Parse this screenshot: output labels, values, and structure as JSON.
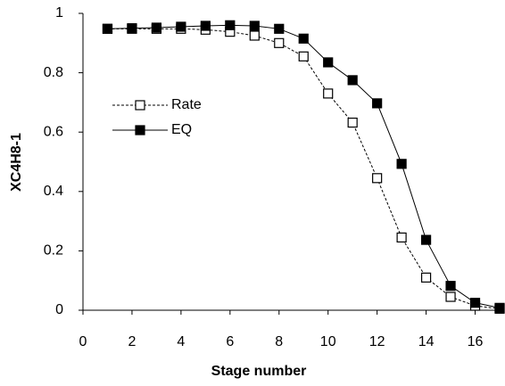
{
  "chart_data": {
    "type": "line",
    "x_label": "Stage number",
    "y_label": "XC4H8-1",
    "x": [
      1,
      2,
      3,
      4,
      5,
      6,
      7,
      8,
      9,
      10,
      11,
      12,
      13,
      14,
      15,
      16,
      17
    ],
    "series": [
      {
        "name": "Rate",
        "color": "#000000",
        "dashed": true,
        "marker_filled": false,
        "values": [
          0.948,
          0.948,
          0.948,
          0.948,
          0.945,
          0.938,
          0.925,
          0.9,
          0.855,
          0.73,
          0.632,
          0.445,
          0.245,
          0.11,
          0.045,
          0.015,
          0.005
        ]
      },
      {
        "name": "EQ",
        "color": "#000000",
        "dashed": false,
        "marker_filled": true,
        "values": [
          0.948,
          0.95,
          0.952,
          0.955,
          0.958,
          0.96,
          0.958,
          0.948,
          0.915,
          0.835,
          0.775,
          0.697,
          0.493,
          0.237,
          0.082,
          0.025,
          0.008
        ]
      }
    ],
    "xlim": [
      0,
      17
    ],
    "xticks": [
      0,
      2,
      4,
      6,
      8,
      10,
      12,
      14,
      16
    ],
    "ylim": [
      0,
      1
    ],
    "yticks": [
      0,
      0.2,
      0.4,
      0.6,
      0.8,
      1
    ],
    "legend": "center left",
    "grid": false
  }
}
